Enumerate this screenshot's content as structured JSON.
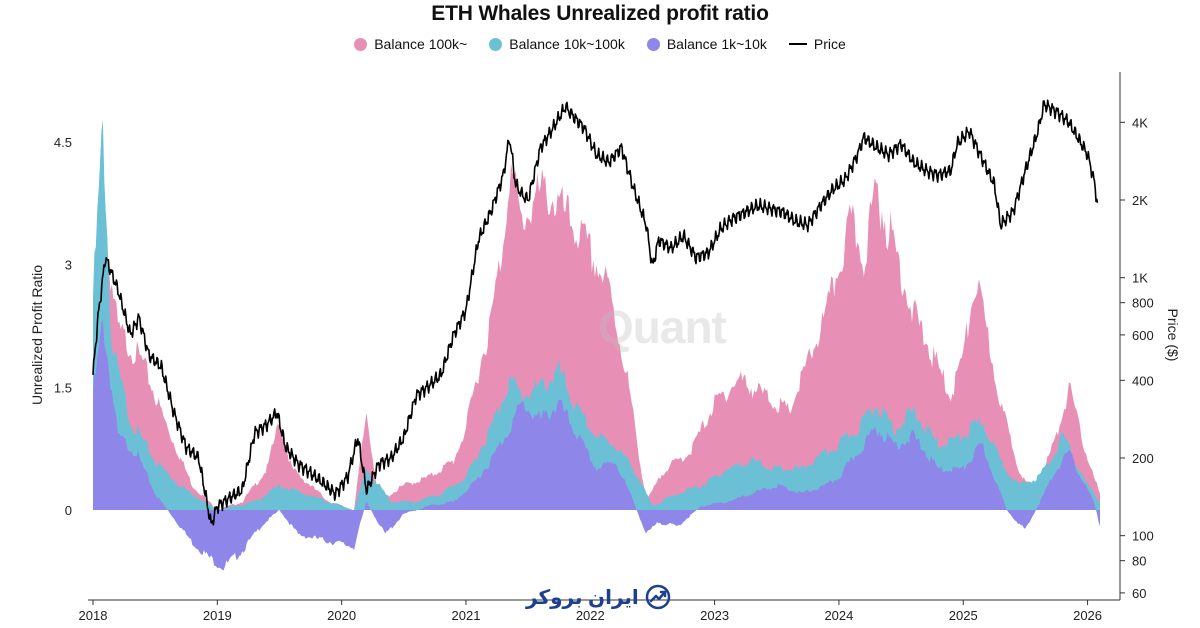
{
  "chart_data": {
    "type": "area",
    "title": "ETH Whales Unrealized profit ratio",
    "ylabel": "Unrealized Profit Ratio",
    "ylabel_right": "Price ($)",
    "y_scale_left": "linear",
    "y_scale_right": "log",
    "ylim": [
      -0.75,
      5.2
    ],
    "ylim_right": [
      60,
      5000
    ],
    "y_ticks": [
      0,
      1.5,
      3,
      4.5
    ],
    "y_tick_labels": [
      "0",
      "1.5",
      "3",
      "4.5"
    ],
    "y_right_ticks": [
      60,
      80,
      100,
      200,
      400,
      600,
      800,
      1000,
      2000,
      4000
    ],
    "y_right_tick_labels": [
      "60",
      "80",
      "100",
      "200",
      "400",
      "600",
      "800",
      "1K",
      "2K",
      "4K"
    ],
    "x_ticks": [
      2018,
      2019,
      2020,
      2021,
      2022,
      2023,
      2024,
      2025,
      2026
    ],
    "x_tick_labels": [
      "2018",
      "2019",
      "2020",
      "2021",
      "2022",
      "2023",
      "2024",
      "2025",
      "2026"
    ],
    "xlim": [
      2018.0,
      2026.1
    ],
    "grid": false,
    "legend_position": "top-center",
    "watermark": "Quant",
    "brand_text": "ایران بروکر",
    "series": [
      {
        "name": "Balance 100k~",
        "kind": "area",
        "color": "#e88fb5",
        "x": [
          2018.0,
          2018.08,
          2018.2,
          2018.4,
          2018.6,
          2018.8,
          2019.0,
          2019.2,
          2019.4,
          2019.5,
          2019.6,
          2019.75,
          2019.9,
          2020.1,
          2020.2,
          2020.3,
          2020.5,
          2020.7,
          2020.9,
          2021.0,
          2021.1,
          2021.2,
          2021.3,
          2021.35,
          2021.45,
          2021.55,
          2021.65,
          2021.8,
          2021.9,
          2022.05,
          2022.15,
          2022.3,
          2022.45,
          2022.6,
          2022.8,
          2023.0,
          2023.2,
          2023.4,
          2023.6,
          2023.75,
          2023.9,
          2024.0,
          2024.1,
          2024.2,
          2024.3,
          2024.45,
          2024.6,
          2024.75,
          2024.9,
          2025.0,
          2025.1,
          2025.2,
          2025.3,
          2025.45,
          2025.55,
          2025.65,
          2025.75,
          2025.85,
          2025.95,
          2026.05,
          2026.1
        ],
        "values": [
          2.2,
          3.6,
          2.2,
          1.8,
          1.0,
          0.3,
          0.0,
          0.1,
          0.5,
          1.1,
          0.5,
          0.3,
          0.1,
          0.0,
          1.2,
          0.1,
          0.3,
          0.4,
          0.6,
          1.0,
          1.7,
          2.3,
          3.3,
          4.2,
          3.5,
          3.8,
          3.9,
          3.6,
          3.4,
          3.0,
          2.7,
          1.6,
          0.1,
          0.5,
          0.7,
          1.3,
          1.6,
          1.4,
          1.2,
          1.8,
          2.4,
          3.0,
          3.5,
          3.1,
          3.9,
          3.2,
          2.4,
          1.9,
          1.4,
          1.9,
          2.8,
          2.1,
          1.3,
          0.5,
          0.2,
          0.5,
          0.9,
          1.5,
          0.9,
          0.4,
          0.2
        ]
      },
      {
        "name": "Balance 10k~100k",
        "kind": "area",
        "color": "#6cc0d6",
        "x": [
          2018.0,
          2018.08,
          2018.15,
          2018.3,
          2018.5,
          2018.7,
          2018.9,
          2019.0,
          2019.3,
          2019.5,
          2019.7,
          2019.9,
          2020.1,
          2020.2,
          2020.4,
          2020.6,
          2020.8,
          2021.0,
          2021.2,
          2021.35,
          2021.45,
          2021.6,
          2021.75,
          2021.9,
          2022.05,
          2022.2,
          2022.35,
          2022.5,
          2022.7,
          2022.9,
          2023.1,
          2023.3,
          2023.5,
          2023.7,
          2023.9,
          2024.0,
          2024.15,
          2024.3,
          2024.45,
          2024.6,
          2024.8,
          2025.0,
          2025.15,
          2025.3,
          2025.45,
          2025.6,
          2025.7,
          2025.8,
          2025.9,
          2026.0,
          2026.1
        ],
        "values": [
          2.6,
          4.7,
          2.0,
          1.1,
          0.6,
          0.3,
          0.1,
          0.0,
          0.1,
          0.3,
          0.2,
          0.1,
          0.0,
          0.5,
          0.1,
          0.1,
          0.2,
          0.4,
          1.0,
          1.6,
          1.4,
          1.5,
          1.7,
          1.2,
          0.9,
          0.8,
          0.5,
          0.05,
          0.2,
          0.3,
          0.5,
          0.6,
          0.5,
          0.5,
          0.7,
          0.8,
          1.0,
          1.3,
          1.0,
          1.2,
          0.8,
          0.9,
          1.1,
          0.6,
          0.3,
          0.4,
          0.6,
          0.9,
          0.6,
          0.3,
          0.1
        ]
      },
      {
        "name": "Balance 1k~10k",
        "kind": "area",
        "color": "#8f86ea",
        "x": [
          2018.0,
          2018.08,
          2018.2,
          2018.35,
          2018.5,
          2018.65,
          2018.8,
          2018.95,
          2019.05,
          2019.2,
          2019.35,
          2019.5,
          2019.65,
          2019.8,
          2019.95,
          2020.1,
          2020.2,
          2020.35,
          2020.5,
          2020.7,
          2020.9,
          2021.05,
          2021.2,
          2021.35,
          2021.45,
          2021.6,
          2021.75,
          2021.9,
          2022.05,
          2022.2,
          2022.35,
          2022.45,
          2022.55,
          2022.7,
          2022.9,
          2023.1,
          2023.3,
          2023.5,
          2023.7,
          2023.9,
          2024.0,
          2024.15,
          2024.3,
          2024.45,
          2024.6,
          2024.8,
          2025.0,
          2025.15,
          2025.25,
          2025.35,
          2025.5,
          2025.65,
          2025.75,
          2025.85,
          2025.95,
          2026.05,
          2026.1
        ],
        "values": [
          1.4,
          2.3,
          0.9,
          0.7,
          0.2,
          -0.1,
          -0.4,
          -0.6,
          -0.7,
          -0.5,
          -0.2,
          0.0,
          -0.3,
          -0.35,
          -0.4,
          -0.45,
          0.1,
          -0.3,
          -0.05,
          0.05,
          0.1,
          0.3,
          0.6,
          1.0,
          1.3,
          1.1,
          1.3,
          0.9,
          0.5,
          0.6,
          0.1,
          -0.3,
          -0.15,
          -0.2,
          0.05,
          0.1,
          0.2,
          0.3,
          0.2,
          0.3,
          0.4,
          0.7,
          1.0,
          0.8,
          0.9,
          0.5,
          0.5,
          0.8,
          0.4,
          0.0,
          -0.25,
          0.2,
          0.5,
          0.7,
          0.4,
          0.1,
          -0.2
        ]
      },
      {
        "name": "Price",
        "kind": "line",
        "axis": "right",
        "color": "#000000",
        "x": [
          2018.0,
          2018.04,
          2018.1,
          2018.2,
          2018.3,
          2018.37,
          2018.45,
          2018.55,
          2018.65,
          2018.75,
          2018.85,
          2018.95,
          2019.0,
          2019.1,
          2019.2,
          2019.3,
          2019.4,
          2019.48,
          2019.55,
          2019.65,
          2019.75,
          2019.85,
          2019.95,
          2020.05,
          2020.13,
          2020.2,
          2020.3,
          2020.4,
          2020.5,
          2020.6,
          2020.7,
          2020.8,
          2020.9,
          2021.0,
          2021.1,
          2021.2,
          2021.3,
          2021.35,
          2021.4,
          2021.45,
          2021.5,
          2021.6,
          2021.7,
          2021.8,
          2021.85,
          2021.95,
          2022.05,
          2022.15,
          2022.25,
          2022.35,
          2022.45,
          2022.5,
          2022.55,
          2022.65,
          2022.75,
          2022.85,
          2022.95,
          2023.05,
          2023.15,
          2023.25,
          2023.35,
          2023.45,
          2023.55,
          2023.65,
          2023.75,
          2023.85,
          2023.95,
          2024.05,
          2024.15,
          2024.2,
          2024.3,
          2024.4,
          2024.5,
          2024.6,
          2024.7,
          2024.8,
          2024.9,
          2024.95,
          2025.05,
          2025.15,
          2025.25,
          2025.3,
          2025.4,
          2025.5,
          2025.6,
          2025.65,
          2025.75,
          2025.85,
          2025.95,
          2026.0,
          2026.05,
          2026.08
        ],
        "values": [
          420,
          700,
          1200,
          900,
          600,
          700,
          500,
          450,
          300,
          220,
          200,
          110,
          130,
          140,
          150,
          250,
          270,
          300,
          220,
          190,
          175,
          160,
          145,
          170,
          240,
          150,
          190,
          200,
          240,
          350,
          380,
          420,
          600,
          750,
          1400,
          1800,
          2500,
          3500,
          2300,
          2100,
          2000,
          3200,
          3800,
          4600,
          4300,
          3800,
          3000,
          2800,
          3200,
          2200,
          1600,
          1100,
          1400,
          1300,
          1450,
          1200,
          1250,
          1550,
          1700,
          1800,
          1900,
          1850,
          1800,
          1650,
          1600,
          1900,
          2200,
          2400,
          3000,
          3500,
          3200,
          3000,
          3300,
          2800,
          2600,
          2500,
          2600,
          3300,
          3700,
          2900,
          2300,
          1600,
          1800,
          2600,
          3700,
          4700,
          4400,
          4000,
          3300,
          3000,
          2400,
          1950
        ]
      }
    ]
  }
}
